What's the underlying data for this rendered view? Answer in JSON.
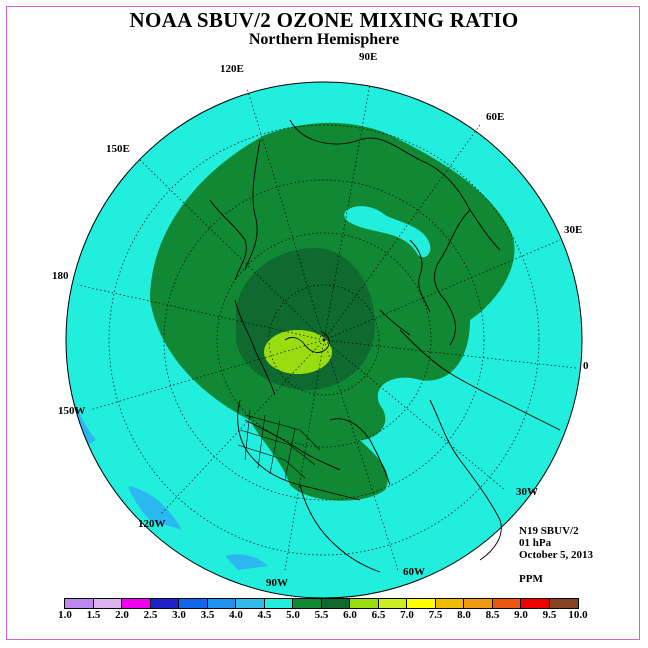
{
  "header": {
    "title": "NOAA SBUV/2 OZONE MIXING RATIO",
    "subtitle": "Northern Hemisphere"
  },
  "map": {
    "projection": "polar stereographic",
    "longitude_labels": [
      "90E",
      "120E",
      "60E",
      "150E",
      "30E",
      "180",
      "0",
      "150W",
      "30W",
      "120W",
      "60W",
      "90W"
    ],
    "colors": {
      "background_field": "#22eedd",
      "field_5_0": "#118833",
      "field_5_5": "#0f6a30",
      "field_6_0": "#99dd11",
      "low_field": "#2bb8f0"
    }
  },
  "info": {
    "satellite": "N19 SBUV/2",
    "level": "01 hPa",
    "date": "October 5, 2013",
    "units": "PPM"
  },
  "colorbar": {
    "labels": [
      "1.0",
      "1.5",
      "2.0",
      "2.5",
      "3.0",
      "3.5",
      "4.0",
      "4.5",
      "5.0",
      "5.5",
      "6.0",
      "6.5",
      "7.0",
      "7.5",
      "8.0",
      "8.5",
      "9.0",
      "9.5",
      "10.0"
    ],
    "colors": [
      "#bb88ee",
      "#ddb3ee",
      "#ee00ee",
      "#2222cc",
      "#1166ee",
      "#1e90ee",
      "#33bbee",
      "#22eedd",
      "#118833",
      "#0f6a30",
      "#99dd11",
      "#ccee22",
      "#ffff00",
      "#eebb00",
      "#ee9911",
      "#ee5511",
      "#ee0000",
      "#884422"
    ]
  }
}
